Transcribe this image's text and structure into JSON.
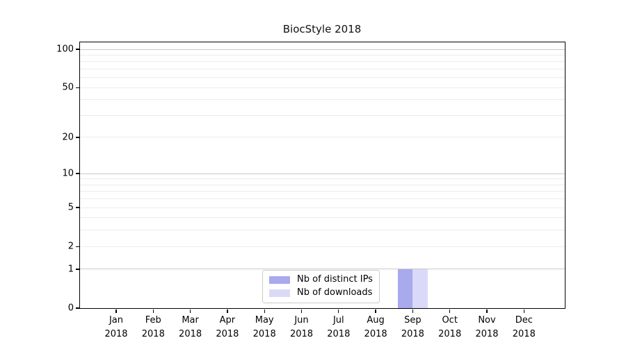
{
  "chart_data": {
    "type": "bar",
    "title": "BiocStyle 2018",
    "categories": [
      "Jan",
      "Feb",
      "Mar",
      "Apr",
      "May",
      "Jun",
      "Jul",
      "Aug",
      "Sep",
      "Oct",
      "Nov",
      "Dec"
    ],
    "x_tick_year": "2018",
    "series": [
      {
        "name": "Nb of distinct IPs",
        "color": "#a9a9ee",
        "values": [
          0,
          0,
          0,
          0,
          0,
          0,
          0,
          0,
          1,
          0,
          0,
          0
        ]
      },
      {
        "name": "Nb of downloads",
        "color": "#dadaf8",
        "values": [
          0,
          0,
          0,
          0,
          0,
          0,
          0,
          0,
          1,
          0,
          0,
          0
        ]
      }
    ],
    "y_axis": {
      "scale": "log1p",
      "ticks": [
        0,
        1,
        2,
        5,
        10,
        20,
        50,
        100
      ],
      "major_gridlines": [
        1,
        10,
        100
      ],
      "minor_gridlines": [
        2,
        3,
        4,
        5,
        6,
        7,
        8,
        9,
        20,
        30,
        40,
        50,
        60,
        70,
        80,
        90
      ],
      "max_value": 100
    },
    "xlabel": "",
    "ylabel": "",
    "grid": true,
    "legend": {
      "position": "lower center"
    },
    "colors": {
      "grid_major": "#c8c8c8",
      "grid_minor": "#ececec",
      "axis": "#000000",
      "background": "#ffffff"
    }
  }
}
